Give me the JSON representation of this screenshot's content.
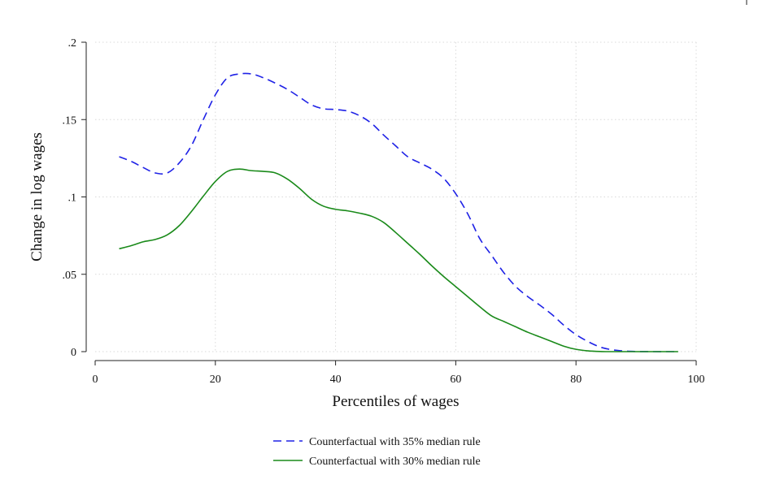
{
  "chart_data": {
    "type": "line",
    "title": "",
    "xlabel": "Percentiles of wages",
    "ylabel": "Change in log wages",
    "xlim": [
      0,
      100
    ],
    "ylim": [
      0,
      0.2
    ],
    "grid": true,
    "legend_position": "bottom",
    "x_ticks": [
      {
        "value": 0,
        "label": "0"
      },
      {
        "value": 20,
        "label": "20"
      },
      {
        "value": 40,
        "label": "40"
      },
      {
        "value": 60,
        "label": "60"
      },
      {
        "value": 80,
        "label": "80"
      },
      {
        "value": 100,
        "label": "100"
      }
    ],
    "y_ticks": [
      {
        "value": 0,
        "label": "0"
      },
      {
        "value": 0.05,
        "label": ".05"
      },
      {
        "value": 0.1,
        "label": ".1"
      },
      {
        "value": 0.15,
        "label": ".15"
      },
      {
        "value": 0.2,
        "label": ".2"
      }
    ],
    "series": [
      {
        "name": "Counterfactual with 35% median rule",
        "color": "#1f22e6",
        "style": "dashed",
        "points": [
          [
            4,
            0.126
          ],
          [
            6,
            0.123
          ],
          [
            8,
            0.119
          ],
          [
            10,
            0.1155
          ],
          [
            12,
            0.1155
          ],
          [
            14,
            0.122
          ],
          [
            16,
            0.133
          ],
          [
            18,
            0.15
          ],
          [
            20,
            0.166
          ],
          [
            22,
            0.177
          ],
          [
            24,
            0.1795
          ],
          [
            26,
            0.1795
          ],
          [
            28,
            0.177
          ],
          [
            30,
            0.1735
          ],
          [
            32,
            0.1695
          ],
          [
            34,
            0.1645
          ],
          [
            36,
            0.1595
          ],
          [
            38,
            0.157
          ],
          [
            40,
            0.1565
          ],
          [
            42,
            0.1555
          ],
          [
            44,
            0.1525
          ],
          [
            46,
            0.1475
          ],
          [
            48,
            0.14
          ],
          [
            50,
            0.133
          ],
          [
            52,
            0.126
          ],
          [
            54,
            0.122
          ],
          [
            56,
            0.118
          ],
          [
            58,
            0.112
          ],
          [
            60,
            0.102
          ],
          [
            62,
            0.089
          ],
          [
            64,
            0.073
          ],
          [
            66,
            0.062
          ],
          [
            68,
            0.051
          ],
          [
            70,
            0.042
          ],
          [
            72,
            0.0355
          ],
          [
            74,
            0.03
          ],
          [
            76,
            0.024
          ],
          [
            78,
            0.017
          ],
          [
            80,
            0.011
          ],
          [
            82,
            0.0065
          ],
          [
            84,
            0.003
          ],
          [
            86,
            0.0012
          ],
          [
            88,
            0.0004
          ],
          [
            90,
            0.0001
          ],
          [
            93,
            0
          ],
          [
            97,
            0
          ]
        ]
      },
      {
        "name": "Counterfactual with 30% median rule",
        "color": "#1a8a1a",
        "style": "solid",
        "points": [
          [
            4,
            0.0665
          ],
          [
            6,
            0.0685
          ],
          [
            8,
            0.071
          ],
          [
            10,
            0.0725
          ],
          [
            12,
            0.0755
          ],
          [
            14,
            0.0815
          ],
          [
            16,
            0.0905
          ],
          [
            18,
            0.1005
          ],
          [
            20,
            0.11
          ],
          [
            22,
            0.1165
          ],
          [
            24,
            0.118
          ],
          [
            26,
            0.117
          ],
          [
            28,
            0.1165
          ],
          [
            30,
            0.1155
          ],
          [
            32,
            0.1115
          ],
          [
            34,
            0.1055
          ],
          [
            36,
            0.0985
          ],
          [
            38,
            0.094
          ],
          [
            40,
            0.092
          ],
          [
            42,
            0.091
          ],
          [
            44,
            0.0895
          ],
          [
            46,
            0.0875
          ],
          [
            48,
            0.0835
          ],
          [
            50,
            0.077
          ],
          [
            52,
            0.07
          ],
          [
            54,
            0.063
          ],
          [
            56,
            0.0555
          ],
          [
            58,
            0.0485
          ],
          [
            60,
            0.042
          ],
          [
            62,
            0.0355
          ],
          [
            64,
            0.029
          ],
          [
            66,
            0.023
          ],
          [
            68,
            0.0195
          ],
          [
            70,
            0.016
          ],
          [
            72,
            0.0125
          ],
          [
            74,
            0.0095
          ],
          [
            76,
            0.0065
          ],
          [
            78,
            0.0035
          ],
          [
            80,
            0.0015
          ],
          [
            82,
            0.0005
          ],
          [
            84,
            0.0001
          ],
          [
            86,
            0
          ],
          [
            97,
            0
          ]
        ]
      }
    ]
  }
}
